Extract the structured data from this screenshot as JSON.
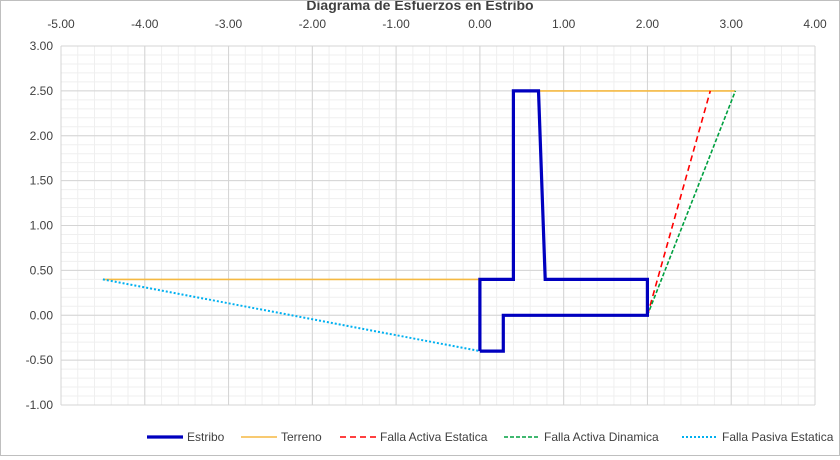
{
  "chart_data": {
    "type": "line",
    "title": "Diagrama de Esfuerzos en Estribo",
    "xlabel": "",
    "ylabel": "",
    "xlim": [
      -5.0,
      4.0
    ],
    "ylim": [
      -1.0,
      3.0
    ],
    "x_ticks": [
      "-5.00",
      "-4.00",
      "-3.00",
      "-2.00",
      "-1.00",
      "0.00",
      "1.00",
      "2.00",
      "3.00",
      "4.00"
    ],
    "y_ticks": [
      "3.00",
      "2.50",
      "2.00",
      "1.50",
      "1.00",
      "0.50",
      "0.00",
      "-0.50",
      "-1.00"
    ],
    "x_axis_position": "top",
    "grid": true,
    "legend_position": "bottom",
    "series": [
      {
        "name": "Estribo",
        "color": "#0000bf",
        "style": "solid-thick",
        "points": [
          [
            0.0,
            -0.4
          ],
          [
            0.28,
            -0.4
          ],
          [
            0.28,
            0.0
          ],
          [
            2.0,
            0.0
          ],
          [
            2.0,
            0.4
          ],
          [
            0.78,
            0.4
          ],
          [
            0.7,
            2.5
          ],
          [
            0.4,
            2.5
          ],
          [
            0.4,
            0.4
          ],
          [
            0.0,
            0.4
          ],
          [
            0.0,
            -0.4
          ]
        ]
      },
      {
        "name": "Terreno",
        "color": "#f5b942",
        "style": "solid",
        "segments": [
          [
            [
              -4.5,
              0.4
            ],
            [
              0.0,
              0.4
            ]
          ],
          [
            [
              0.7,
              2.5
            ],
            [
              3.05,
              2.5
            ]
          ]
        ]
      },
      {
        "name": "Falla Activa Estatica",
        "color": "#ff0000",
        "style": "dashed",
        "points": [
          [
            2.0,
            0.0
          ],
          [
            2.75,
            2.5
          ]
        ]
      },
      {
        "name": "Falla Activa Dinamica",
        "color": "#00a040",
        "style": "dashed-fine",
        "points": [
          [
            2.0,
            0.0
          ],
          [
            3.05,
            2.5
          ]
        ]
      },
      {
        "name": "Falla Pasiva Estatica",
        "color": "#00b0f0",
        "style": "dotted",
        "points": [
          [
            -4.5,
            0.4
          ],
          [
            0.0,
            -0.4
          ]
        ]
      }
    ]
  }
}
